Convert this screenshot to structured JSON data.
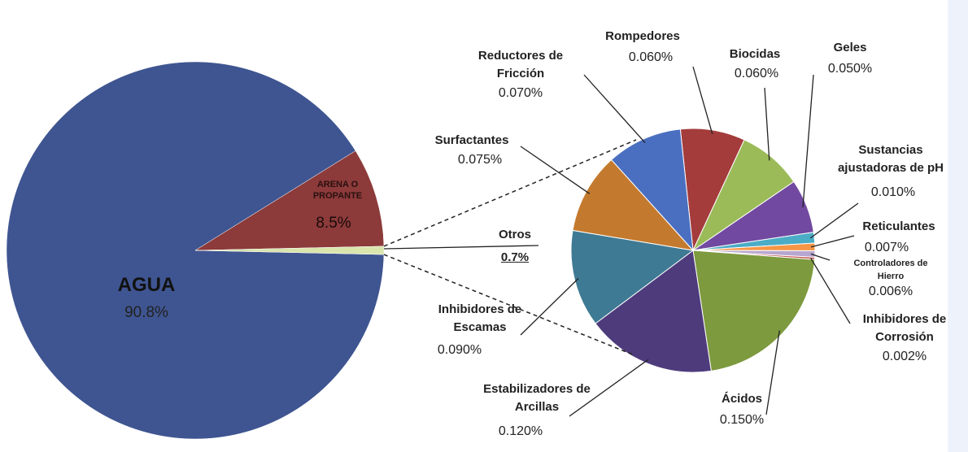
{
  "chart_data": [
    {
      "type": "pie",
      "categories": [
        "AGUA",
        "ARENA O PROPANTE",
        "Otros"
      ],
      "values": [
        90.8,
        8.5,
        0.7
      ],
      "value_labels": [
        "90.8%",
        "8.5%",
        "0.7%"
      ],
      "colors": [
        "#3f5591",
        "#8c3a3a",
        "#d9e5ad"
      ]
    },
    {
      "type": "pie",
      "categories": [
        "Rompedores",
        "Biocidas",
        "Geles",
        "Sustancias ajustadoras de pH",
        "Reticulantes",
        "Controladores de Hierro",
        "Inhibidores de Corrosión",
        "Ácidos",
        "Estabilizadores de Arcillas",
        "Inhibidores de Escamas",
        "Surfactantes",
        "Reductores de Fricción"
      ],
      "values": [
        0.06,
        0.06,
        0.05,
        0.01,
        0.007,
        0.006,
        0.002,
        0.15,
        0.12,
        0.09,
        0.075,
        0.07
      ],
      "value_labels": [
        "0.060%",
        "0.060%",
        "0.050%",
        "0.010%",
        "0.007%",
        "0.006%",
        "0.002%",
        "0.150%",
        "0.120%",
        "0.090%",
        "0.075%",
        "0.070%"
      ],
      "colors": [
        "#a43c3c",
        "#9bbb59",
        "#7149a0",
        "#4bacc6",
        "#f79646",
        "#b7a6cf",
        "#c0504d",
        "#7d9a3e",
        "#4e3b7c",
        "#3f7a94",
        "#c47a2e",
        "#4b6fc0"
      ]
    }
  ]
}
